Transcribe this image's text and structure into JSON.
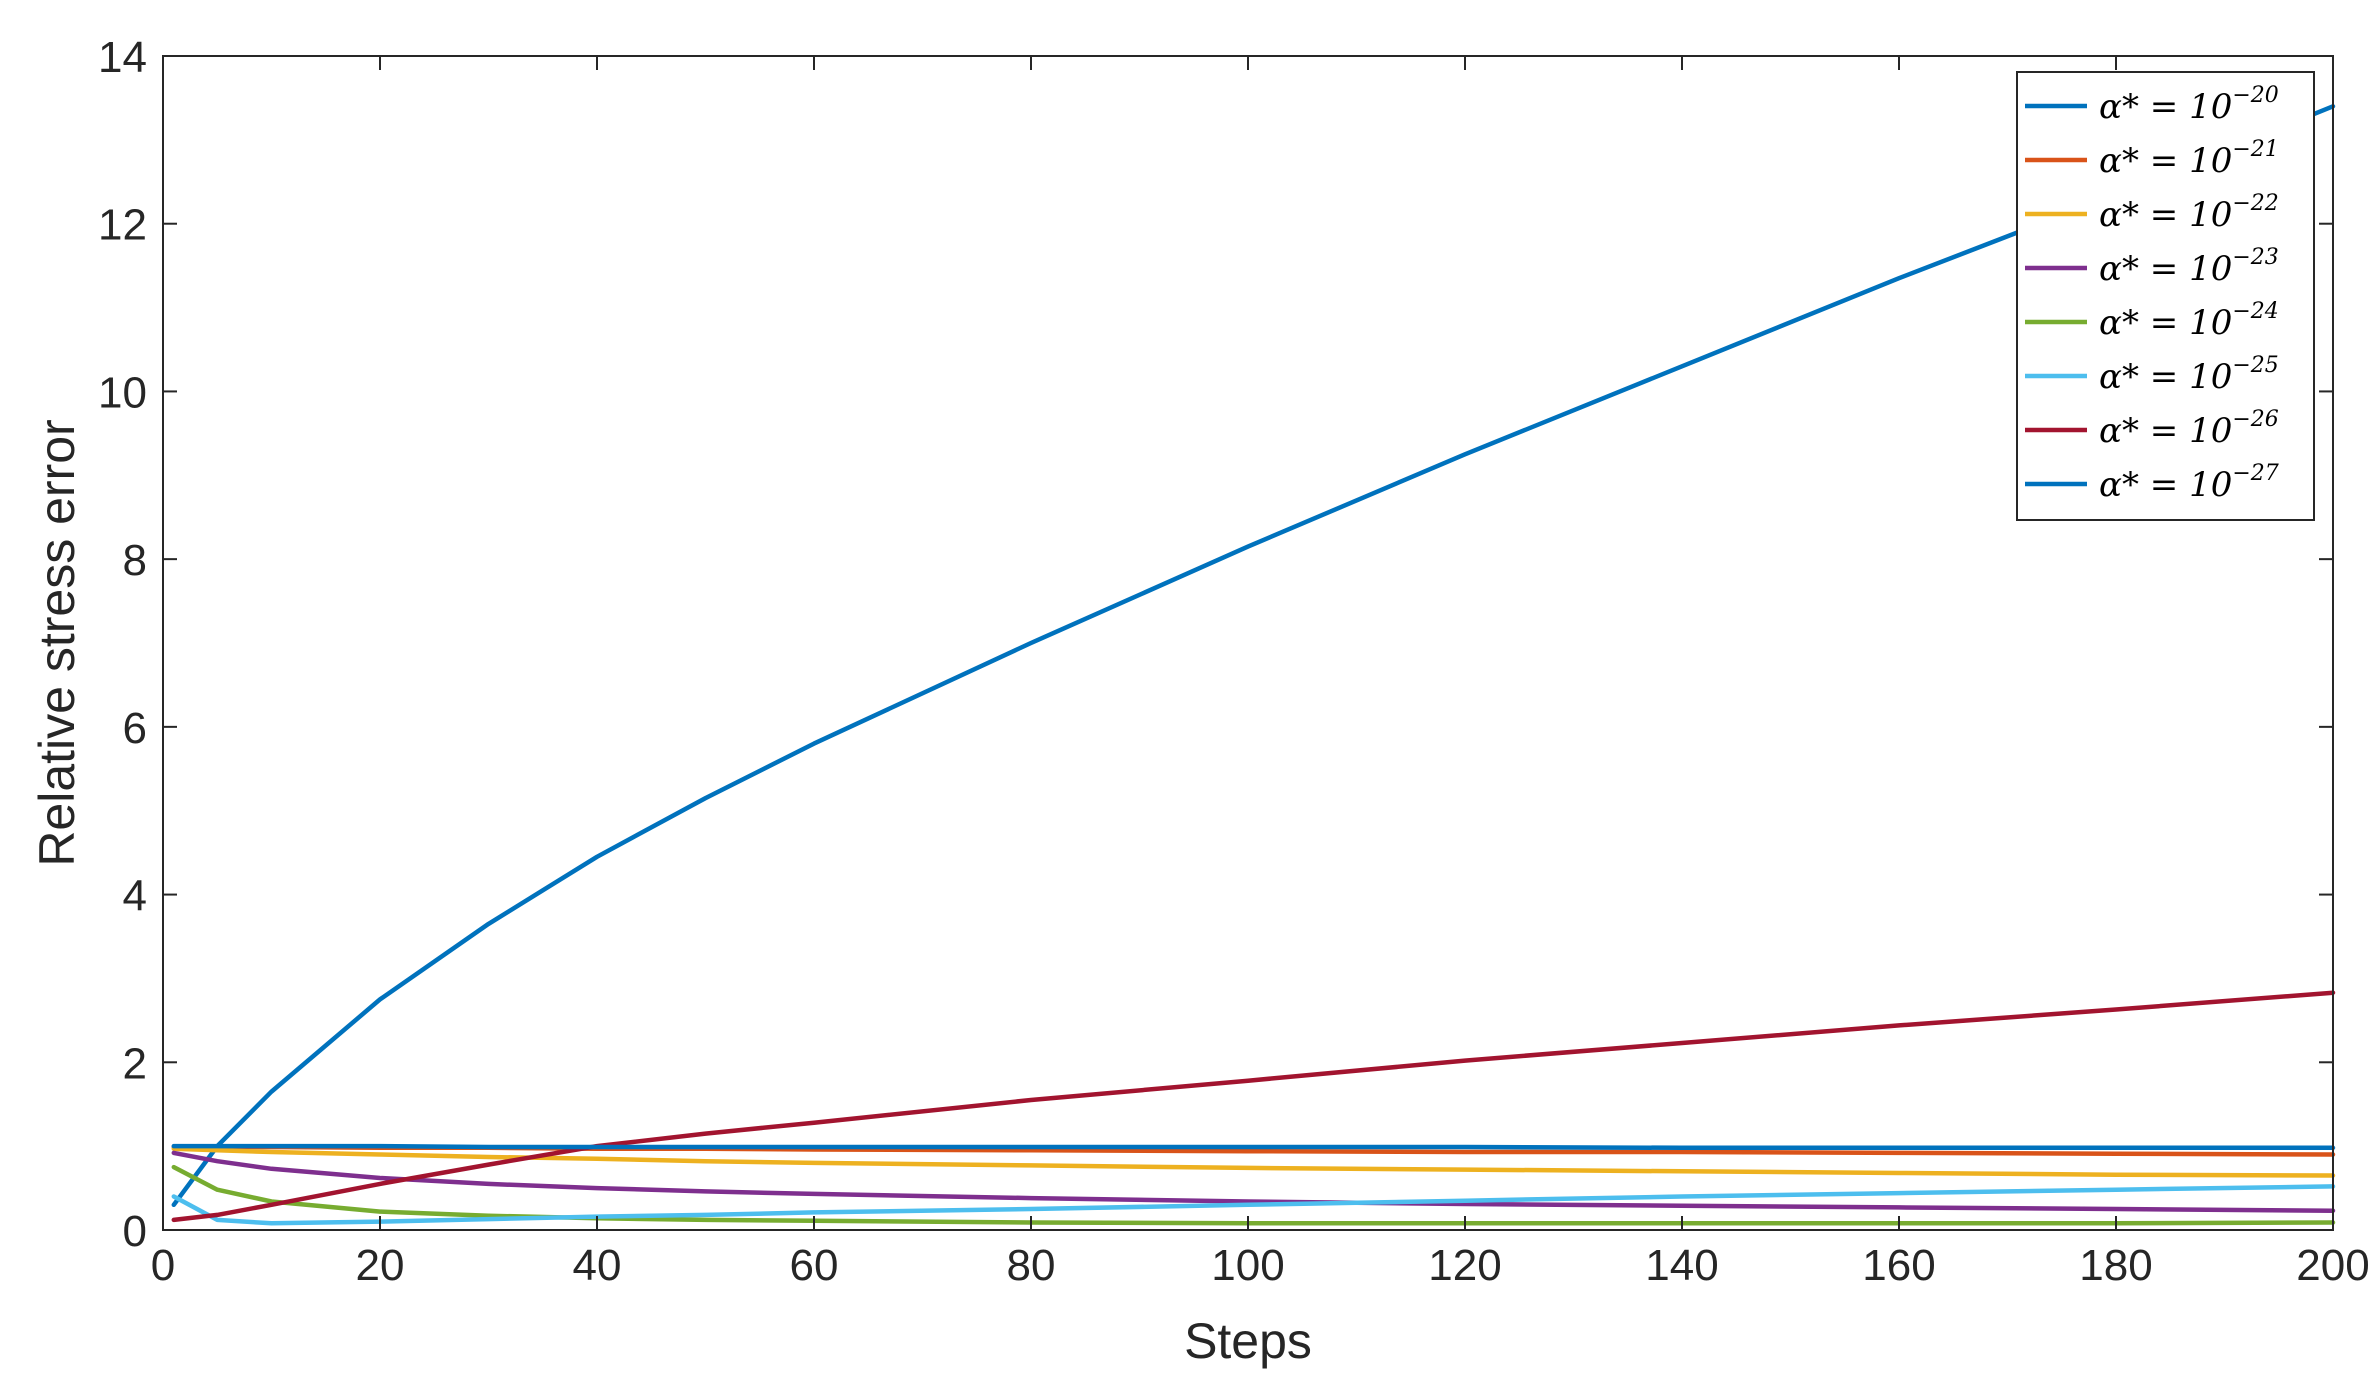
{
  "chart_data": {
    "type": "line",
    "title": "",
    "xlabel": "Steps",
    "ylabel": "Relative stress error",
    "xlim": [
      0,
      200
    ],
    "ylim": [
      0,
      14
    ],
    "xticks": [
      0,
      20,
      40,
      60,
      80,
      100,
      120,
      140,
      160,
      180,
      200
    ],
    "yticks": [
      0,
      2,
      4,
      6,
      8,
      10,
      12,
      14
    ],
    "grid": false,
    "box": true,
    "legend_position": "top-right",
    "x": [
      1,
      5,
      10,
      20,
      30,
      40,
      50,
      60,
      80,
      100,
      120,
      140,
      160,
      180,
      200
    ],
    "series": [
      {
        "name": "α* = 10^-20",
        "base": "α* = 10",
        "exp": "−20",
        "color": "#0072BD",
        "values": [
          0.3,
          1.0,
          1.65,
          2.75,
          3.65,
          4.45,
          5.15,
          5.8,
          7.0,
          8.15,
          9.25,
          10.3,
          11.35,
          12.35,
          13.4
        ]
      },
      {
        "name": "α* = 10^-21",
        "base": "α* = 10",
        "exp": "−21",
        "color": "#D95319",
        "values": [
          0.99,
          0.99,
          0.99,
          0.98,
          0.98,
          0.97,
          0.97,
          0.96,
          0.95,
          0.94,
          0.93,
          0.93,
          0.92,
          0.91,
          0.9
        ]
      },
      {
        "name": "α* = 10^-22",
        "base": "α* = 10",
        "exp": "−22",
        "color": "#EDB120",
        "values": [
          0.97,
          0.95,
          0.93,
          0.9,
          0.87,
          0.85,
          0.82,
          0.8,
          0.77,
          0.74,
          0.72,
          0.7,
          0.68,
          0.66,
          0.65
        ]
      },
      {
        "name": "α* = 10^-23",
        "base": "α* = 10",
        "exp": "−23",
        "color": "#7E2F8E",
        "values": [
          0.92,
          0.82,
          0.73,
          0.62,
          0.55,
          0.5,
          0.46,
          0.43,
          0.38,
          0.34,
          0.31,
          0.29,
          0.27,
          0.25,
          0.23
        ]
      },
      {
        "name": "α* = 10^-24",
        "base": "α* = 10",
        "exp": "−24",
        "color": "#77AC30",
        "values": [
          0.75,
          0.48,
          0.34,
          0.22,
          0.17,
          0.14,
          0.12,
          0.11,
          0.09,
          0.08,
          0.08,
          0.08,
          0.08,
          0.08,
          0.09
        ]
      },
      {
        "name": "α* = 10^-25",
        "base": "α* = 10",
        "exp": "−25",
        "color": "#4DBEEE",
        "values": [
          0.4,
          0.12,
          0.08,
          0.1,
          0.13,
          0.16,
          0.18,
          0.21,
          0.25,
          0.3,
          0.35,
          0.4,
          0.44,
          0.48,
          0.52
        ]
      },
      {
        "name": "α* = 10^-26",
        "base": "α* = 10",
        "exp": "−26",
        "color": "#A2142F",
        "values": [
          0.12,
          0.18,
          0.3,
          0.55,
          0.78,
          1.0,
          1.15,
          1.28,
          1.55,
          1.78,
          2.02,
          2.23,
          2.44,
          2.63,
          2.83
        ]
      },
      {
        "name": "α* = 10^-27",
        "base": "α* = 10",
        "exp": "−27",
        "color": "#0072BD",
        "values": [
          1.0,
          1.0,
          1.0,
          1.0,
          0.99,
          0.99,
          0.99,
          0.99,
          0.99,
          0.99,
          0.99,
          0.98,
          0.98,
          0.98,
          0.98
        ]
      }
    ]
  }
}
